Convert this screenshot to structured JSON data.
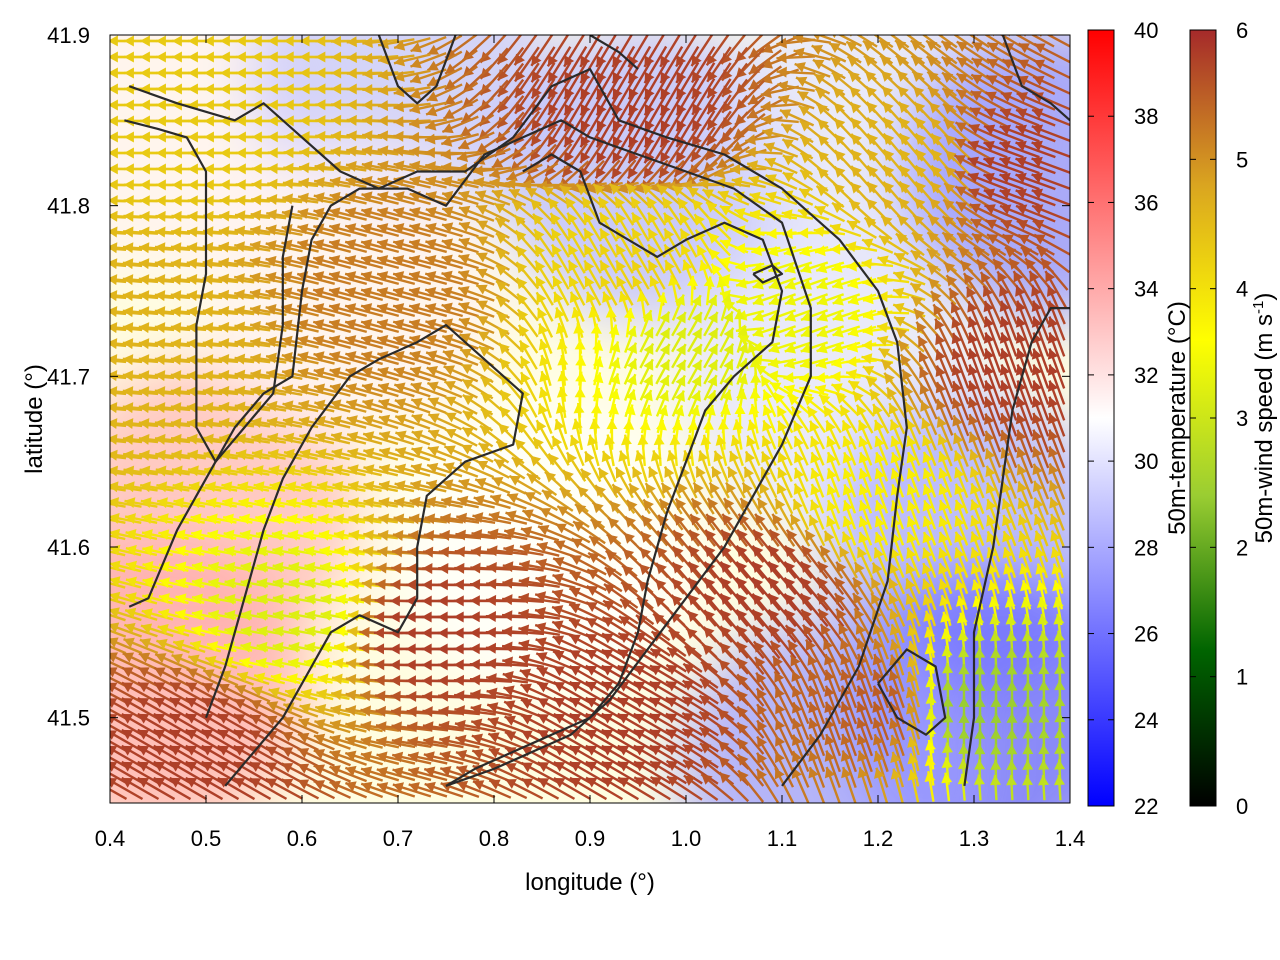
{
  "chart_data": {
    "type": "heatmap",
    "subtype": "wind-vector field over temperature map with contour lines",
    "xlabel": "longitude (°)",
    "ylabel": "latitude (°)",
    "xlim": [
      0.4,
      1.4
    ],
    "ylim": [
      41.45,
      41.9
    ],
    "x_ticks": [
      "0.4",
      "0.5",
      "0.6",
      "0.7",
      "0.8",
      "0.9",
      "1.0",
      "1.1",
      "1.2",
      "1.3",
      "1.4"
    ],
    "y_ticks": [
      "41.5",
      "41.6",
      "41.7",
      "41.8",
      "41.9"
    ],
    "temperature_colorbar": {
      "label": "50m-temperature (°C)",
      "range": [
        22,
        40
      ],
      "ticks": [
        "22",
        "24",
        "26",
        "28",
        "30",
        "32",
        "34",
        "36",
        "38",
        "40"
      ],
      "colors": [
        "#0000ff",
        "#ffffff",
        "#ff0000"
      ]
    },
    "wind_colorbar": {
      "label_main": "50m-wind speed (m s",
      "label_sup": "-1",
      "label_end": ")",
      "range": [
        0,
        6
      ],
      "ticks": [
        "0",
        "1",
        "2",
        "3",
        "4",
        "5",
        "6"
      ],
      "colors": [
        "#000000",
        "#006400",
        "#9acd32",
        "#ffff00",
        "#daa520",
        "#a52a2a"
      ]
    },
    "temperature_regions": [
      {
        "lon": 0.45,
        "lat": 41.85,
        "value": 31.5
      },
      {
        "lon": 0.7,
        "lat": 41.88,
        "value": 29
      },
      {
        "lon": 0.96,
        "lat": 41.82,
        "value": 28.5
      },
      {
        "lon": 1.2,
        "lat": 41.85,
        "value": 30
      },
      {
        "lon": 1.38,
        "lat": 41.82,
        "value": 27
      },
      {
        "lon": 0.5,
        "lat": 41.62,
        "value": 33.5
      },
      {
        "lon": 0.45,
        "lat": 41.52,
        "value": 34
      },
      {
        "lon": 0.85,
        "lat": 41.6,
        "value": 31
      },
      {
        "lon": 1.15,
        "lat": 41.7,
        "value": 30
      },
      {
        "lon": 1.3,
        "lat": 41.6,
        "value": 28
      },
      {
        "lon": 1.32,
        "lat": 41.5,
        "value": 25.5
      },
      {
        "lon": 1.15,
        "lat": 41.47,
        "value": 27.5
      },
      {
        "lon": 0.65,
        "lat": 41.75,
        "value": 31.5
      }
    ],
    "wind_regions": [
      {
        "lon": 0.75,
        "lat": 41.55,
        "speed": 5.8,
        "dir_deg": 180
      },
      {
        "lon": 0.5,
        "lat": 41.48,
        "speed": 5.8,
        "dir_deg": 150
      },
      {
        "lon": 0.7,
        "lat": 41.75,
        "speed": 5.2,
        "dir_deg": 165
      },
      {
        "lon": 0.45,
        "lat": 41.72,
        "speed": 4.6,
        "dir_deg": 175
      },
      {
        "lon": 0.5,
        "lat": 41.85,
        "speed": 4.3,
        "dir_deg": 180
      },
      {
        "lon": 0.6,
        "lat": 41.56,
        "speed": 3.2,
        "dir_deg": 170
      },
      {
        "lon": 0.95,
        "lat": 41.86,
        "speed": 5.8,
        "dir_deg": 240
      },
      {
        "lon": 0.95,
        "lat": 41.76,
        "speed": 4.2,
        "dir_deg": 120
      },
      {
        "lon": 1.0,
        "lat": 41.72,
        "speed": 3.2,
        "dir_deg": 60
      },
      {
        "lon": 1.12,
        "lat": 41.74,
        "speed": 3.4,
        "dir_deg": 200
      },
      {
        "lon": 1.25,
        "lat": 41.82,
        "speed": 4.6,
        "dir_deg": 130
      },
      {
        "lon": 1.35,
        "lat": 41.82,
        "speed": 5.8,
        "dir_deg": 160
      },
      {
        "lon": 1.1,
        "lat": 41.57,
        "speed": 5.8,
        "dir_deg": 130
      },
      {
        "lon": 1.2,
        "lat": 41.62,
        "speed": 3.8,
        "dir_deg": 110
      },
      {
        "lon": 1.3,
        "lat": 41.5,
        "speed": 2.4,
        "dir_deg": 90
      },
      {
        "lon": 1.2,
        "lat": 41.5,
        "speed": 5.5,
        "dir_deg": 110
      },
      {
        "lon": 0.95,
        "lat": 41.5,
        "speed": 5.8,
        "dir_deg": 150
      },
      {
        "lon": 1.35,
        "lat": 41.7,
        "speed": 5.8,
        "dir_deg": 110
      }
    ],
    "contour_lines": [
      [
        [
          0.42,
          41.565
        ],
        [
          0.44,
          41.57
        ],
        [
          0.47,
          41.61
        ],
        [
          0.5,
          41.64
        ],
        [
          0.53,
          41.67
        ],
        [
          0.56,
          41.69
        ],
        [
          0.59,
          41.7
        ],
        [
          0.6,
          41.75
        ],
        [
          0.61,
          41.78
        ],
        [
          0.63,
          41.8
        ],
        [
          0.66,
          41.81
        ],
        [
          0.71,
          41.81
        ],
        [
          0.75,
          41.8
        ],
        [
          0.79,
          41.83
        ],
        [
          0.83,
          41.84
        ],
        [
          0.87,
          41.85
        ],
        [
          0.9,
          41.84
        ],
        [
          0.95,
          41.83
        ],
        [
          1.0,
          41.82
        ],
        [
          1.05,
          41.81
        ],
        [
          1.1,
          41.79
        ],
        [
          1.13,
          41.74
        ],
        [
          1.13,
          41.7
        ],
        [
          1.1,
          41.66
        ],
        [
          1.07,
          41.63
        ],
        [
          1.04,
          41.6
        ],
        [
          1.0,
          41.57
        ],
        [
          0.96,
          41.54
        ],
        [
          0.92,
          41.51
        ],
        [
          0.88,
          41.49
        ],
        [
          0.8,
          41.47
        ],
        [
          0.75,
          41.46
        ]
      ],
      [
        [
          0.42,
          41.87
        ],
        [
          0.47,
          41.86
        ],
        [
          0.53,
          41.85
        ],
        [
          0.56,
          41.86
        ],
        [
          0.6,
          41.84
        ],
        [
          0.64,
          41.82
        ],
        [
          0.68,
          41.81
        ],
        [
          0.72,
          41.82
        ],
        [
          0.77,
          41.82
        ],
        [
          0.82,
          41.84
        ],
        [
          0.86,
          41.87
        ],
        [
          0.9,
          41.88
        ],
        [
          0.93,
          41.85
        ],
        [
          0.98,
          41.84
        ],
        [
          1.04,
          41.83
        ],
        [
          1.1,
          41.81
        ],
        [
          1.16,
          41.78
        ],
        [
          1.2,
          41.75
        ],
        [
          1.22,
          41.72
        ],
        [
          1.23,
          41.67
        ],
        [
          1.22,
          41.63
        ],
        [
          1.21,
          41.58
        ],
        [
          1.18,
          41.53
        ],
        [
          1.14,
          41.49
        ],
        [
          1.1,
          41.46
        ]
      ],
      [
        [
          0.415,
          41.85
        ],
        [
          0.45,
          41.845
        ],
        [
          0.48,
          41.84
        ],
        [
          0.5,
          41.82
        ],
        [
          0.5,
          41.79
        ],
        [
          0.5,
          41.76
        ],
        [
          0.49,
          41.73
        ],
        [
          0.49,
          41.7
        ],
        [
          0.49,
          41.67
        ],
        [
          0.51,
          41.65
        ],
        [
          0.54,
          41.67
        ],
        [
          0.57,
          41.69
        ],
        [
          0.58,
          41.73
        ],
        [
          0.58,
          41.77
        ],
        [
          0.59,
          41.8
        ]
      ],
      [
        [
          0.52,
          41.46
        ],
        [
          0.55,
          41.48
        ],
        [
          0.58,
          41.5
        ],
        [
          0.61,
          41.53
        ],
        [
          0.63,
          41.55
        ],
        [
          0.66,
          41.56
        ],
        [
          0.7,
          41.55
        ],
        [
          0.72,
          41.57
        ],
        [
          0.72,
          41.6
        ],
        [
          0.73,
          41.63
        ],
        [
          0.77,
          41.65
        ],
        [
          0.82,
          41.66
        ],
        [
          0.83,
          41.69
        ],
        [
          0.79,
          41.71
        ],
        [
          0.75,
          41.73
        ],
        [
          0.72,
          41.72
        ],
        [
          0.68,
          41.71
        ],
        [
          0.65,
          41.7
        ],
        [
          0.61,
          41.67
        ],
        [
          0.58,
          41.64
        ],
        [
          0.56,
          41.61
        ],
        [
          0.54,
          41.57
        ],
        [
          0.52,
          41.53
        ],
        [
          0.5,
          41.5
        ]
      ],
      [
        [
          0.75,
          41.46
        ],
        [
          0.78,
          41.47
        ],
        [
          0.82,
          41.48
        ],
        [
          0.86,
          41.49
        ],
        [
          0.9,
          41.5
        ],
        [
          0.93,
          41.52
        ],
        [
          0.95,
          41.55
        ],
        [
          0.96,
          41.58
        ],
        [
          0.98,
          41.62
        ],
        [
          1.0,
          41.65
        ],
        [
          1.02,
          41.68
        ],
        [
          1.05,
          41.7
        ],
        [
          1.09,
          41.72
        ],
        [
          1.1,
          41.75
        ],
        [
          1.08,
          41.78
        ],
        [
          1.04,
          41.79
        ],
        [
          1.0,
          41.78
        ],
        [
          0.97,
          41.77
        ],
        [
          0.94,
          41.78
        ],
        [
          0.91,
          41.79
        ],
        [
          0.89,
          41.82
        ],
        [
          0.86,
          41.83
        ],
        [
          0.83,
          41.82
        ]
      ],
      [
        [
          1.29,
          41.46
        ],
        [
          1.3,
          41.5
        ],
        [
          1.3,
          41.55
        ],
        [
          1.32,
          41.6
        ],
        [
          1.33,
          41.64
        ],
        [
          1.34,
          41.68
        ],
        [
          1.36,
          41.72
        ],
        [
          1.38,
          41.74
        ],
        [
          1.4,
          41.74
        ]
      ],
      [
        [
          1.2,
          41.52
        ],
        [
          1.22,
          41.5
        ],
        [
          1.25,
          41.49
        ],
        [
          1.27,
          41.5
        ],
        [
          1.26,
          41.53
        ],
        [
          1.23,
          41.54
        ],
        [
          1.2,
          41.52
        ]
      ],
      [
        [
          1.07,
          41.76
        ],
        [
          1.09,
          41.765
        ],
        [
          1.1,
          41.76
        ],
        [
          1.08,
          41.755
        ],
        [
          1.07,
          41.76
        ]
      ],
      [
        [
          0.68,
          41.9
        ],
        [
          0.7,
          41.87
        ],
        [
          0.72,
          41.86
        ],
        [
          0.74,
          41.87
        ],
        [
          0.76,
          41.9
        ]
      ],
      [
        [
          0.9,
          41.9
        ],
        [
          0.93,
          41.89
        ],
        [
          0.95,
          41.88
        ]
      ],
      [
        [
          1.33,
          41.9
        ],
        [
          1.35,
          41.87
        ],
        [
          1.38,
          41.86
        ],
        [
          1.4,
          41.85
        ]
      ]
    ]
  }
}
